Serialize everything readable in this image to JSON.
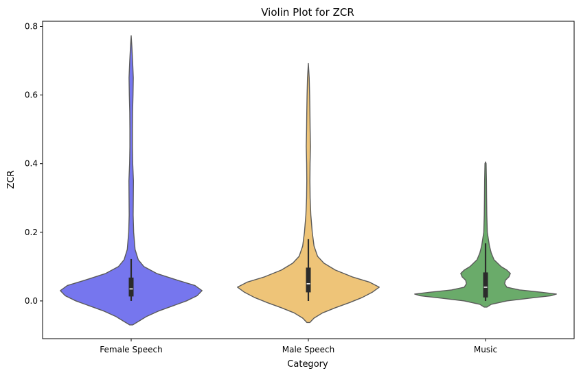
{
  "chart_data": {
    "type": "violin",
    "title": "Violin Plot for ZCR",
    "xlabel": "Category",
    "ylabel": "ZCR",
    "ylim": [
      -0.11,
      0.815
    ],
    "yticks": [
      0.0,
      0.2,
      0.4,
      0.6,
      0.8
    ],
    "ytick_labels": [
      "0.0",
      "0.2",
      "0.4",
      "0.6",
      "0.8"
    ],
    "grid": false,
    "categories": [
      "Female Speech",
      "Male Speech",
      "Music"
    ],
    "series": [
      {
        "category": "Female Speech",
        "color": "#7676ee",
        "min": 0.0,
        "q1": 0.013,
        "median": 0.035,
        "q3": 0.068,
        "max": 0.122,
        "density": [
          [
            -0.07,
            0.02
          ],
          [
            -0.06,
            0.1
          ],
          [
            -0.045,
            0.22
          ],
          [
            -0.03,
            0.38
          ],
          [
            -0.015,
            0.58
          ],
          [
            0.0,
            0.78
          ],
          [
            0.015,
            0.93
          ],
          [
            0.03,
            1.0
          ],
          [
            0.045,
            0.9
          ],
          [
            0.06,
            0.66
          ],
          [
            0.08,
            0.36
          ],
          [
            0.1,
            0.18
          ],
          [
            0.12,
            0.1
          ],
          [
            0.15,
            0.055
          ],
          [
            0.2,
            0.035
          ],
          [
            0.25,
            0.028
          ],
          [
            0.3,
            0.03
          ],
          [
            0.35,
            0.032
          ],
          [
            0.4,
            0.022
          ],
          [
            0.45,
            0.018
          ],
          [
            0.5,
            0.018
          ],
          [
            0.55,
            0.02
          ],
          [
            0.6,
            0.026
          ],
          [
            0.65,
            0.03
          ],
          [
            0.7,
            0.02
          ],
          [
            0.74,
            0.01
          ],
          [
            0.773,
            0.0
          ]
        ]
      },
      {
        "category": "Male Speech",
        "color": "#eec478",
        "min": 0.0,
        "q1": 0.025,
        "median": 0.05,
        "q3": 0.097,
        "max": 0.18,
        "density": [
          [
            -0.063,
            0.02
          ],
          [
            -0.05,
            0.08
          ],
          [
            -0.035,
            0.2
          ],
          [
            -0.02,
            0.38
          ],
          [
            -0.005,
            0.58
          ],
          [
            0.01,
            0.76
          ],
          [
            0.025,
            0.9
          ],
          [
            0.04,
            1.0
          ],
          [
            0.055,
            0.86
          ],
          [
            0.07,
            0.62
          ],
          [
            0.09,
            0.38
          ],
          [
            0.11,
            0.22
          ],
          [
            0.13,
            0.13
          ],
          [
            0.16,
            0.08
          ],
          [
            0.2,
            0.055
          ],
          [
            0.25,
            0.035
          ],
          [
            0.3,
            0.025
          ],
          [
            0.35,
            0.022
          ],
          [
            0.4,
            0.024
          ],
          [
            0.45,
            0.03
          ],
          [
            0.5,
            0.025
          ],
          [
            0.55,
            0.022
          ],
          [
            0.6,
            0.018
          ],
          [
            0.65,
            0.012
          ],
          [
            0.692,
            0.0
          ]
        ]
      },
      {
        "category": "Music",
        "color": "#6aab6a",
        "min": 0.0,
        "q1": 0.01,
        "median": 0.04,
        "q3": 0.083,
        "max": 0.168,
        "density": [
          [
            -0.018,
            0.02
          ],
          [
            -0.01,
            0.08
          ],
          [
            0.0,
            0.3
          ],
          [
            0.008,
            0.62
          ],
          [
            0.015,
            0.92
          ],
          [
            0.02,
            1.0
          ],
          [
            0.025,
            0.8
          ],
          [
            0.032,
            0.48
          ],
          [
            0.04,
            0.3
          ],
          [
            0.05,
            0.27
          ],
          [
            0.06,
            0.28
          ],
          [
            0.07,
            0.33
          ],
          [
            0.08,
            0.35
          ],
          [
            0.09,
            0.3
          ],
          [
            0.1,
            0.22
          ],
          [
            0.12,
            0.12
          ],
          [
            0.14,
            0.08
          ],
          [
            0.16,
            0.055
          ],
          [
            0.18,
            0.04
          ],
          [
            0.2,
            0.025
          ],
          [
            0.25,
            0.018
          ],
          [
            0.3,
            0.015
          ],
          [
            0.35,
            0.013
          ],
          [
            0.4,
            0.008
          ],
          [
            0.405,
            0.0
          ]
        ]
      }
    ]
  }
}
